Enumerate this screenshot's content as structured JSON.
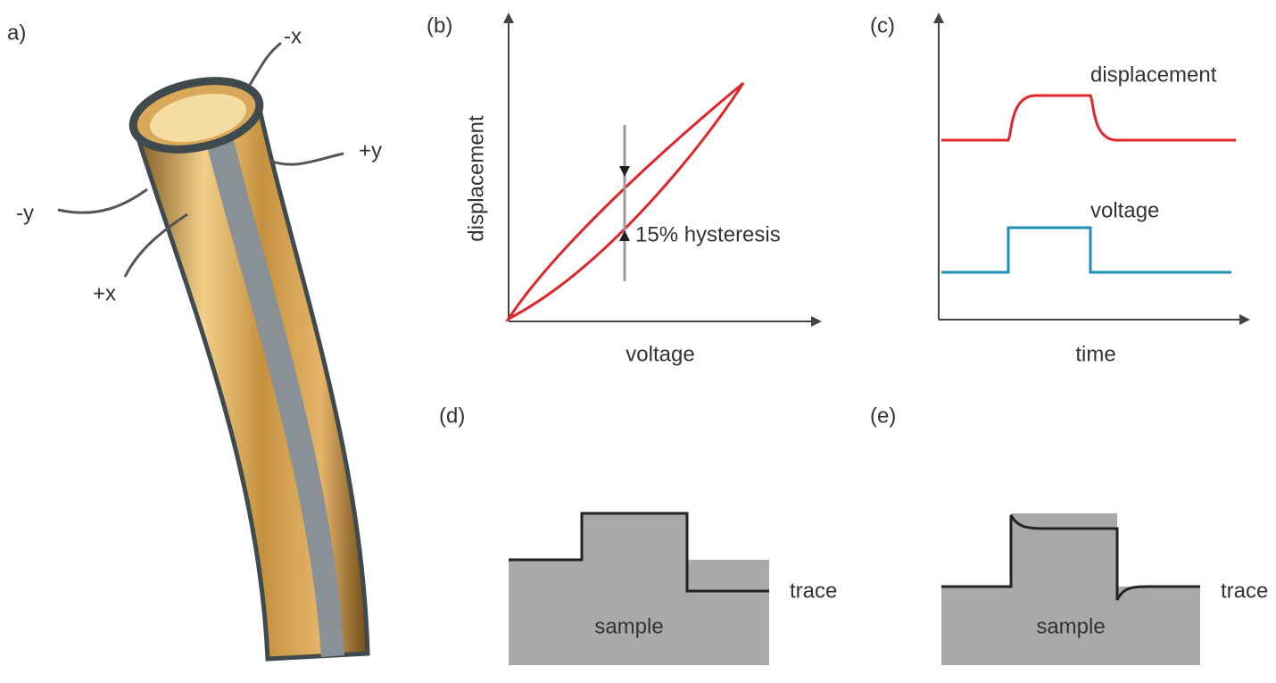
{
  "panels": {
    "a": {
      "label": "a)",
      "axes": [
        "-x",
        "+y",
        "-y",
        "+x"
      ]
    },
    "b": {
      "label": "(b)",
      "y_axis": "displacement",
      "x_axis": "voltage",
      "annotation": "15% hysteresis"
    },
    "c": {
      "label": "(c)",
      "x_axis": "time",
      "curves": [
        "displacement",
        "voltage"
      ]
    },
    "d": {
      "label": "(d)",
      "trace": "trace",
      "sample": "sample"
    },
    "e": {
      "label": "(e)",
      "trace": "trace",
      "sample": "sample"
    }
  }
}
